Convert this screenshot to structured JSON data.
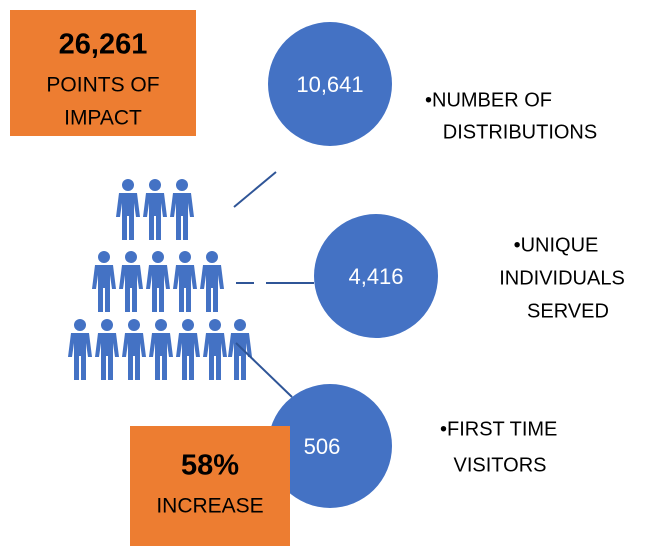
{
  "impact": {
    "value": "26,261",
    "line1": "POINTS OF",
    "line2": "IMPACT"
  },
  "stats": [
    {
      "value": "10,641",
      "label": [
        "•NUMBER OF",
        "DISTRIBUTIONS"
      ]
    },
    {
      "value": "4,416",
      "label": [
        "•UNIQUE",
        "INDIVIDUALS",
        "SERVED"
      ]
    },
    {
      "value": "506",
      "label": [
        "•FIRST TIME",
        "VISITORS"
      ]
    }
  ],
  "increase": {
    "value": "58%",
    "label": "INCREASE"
  }
}
